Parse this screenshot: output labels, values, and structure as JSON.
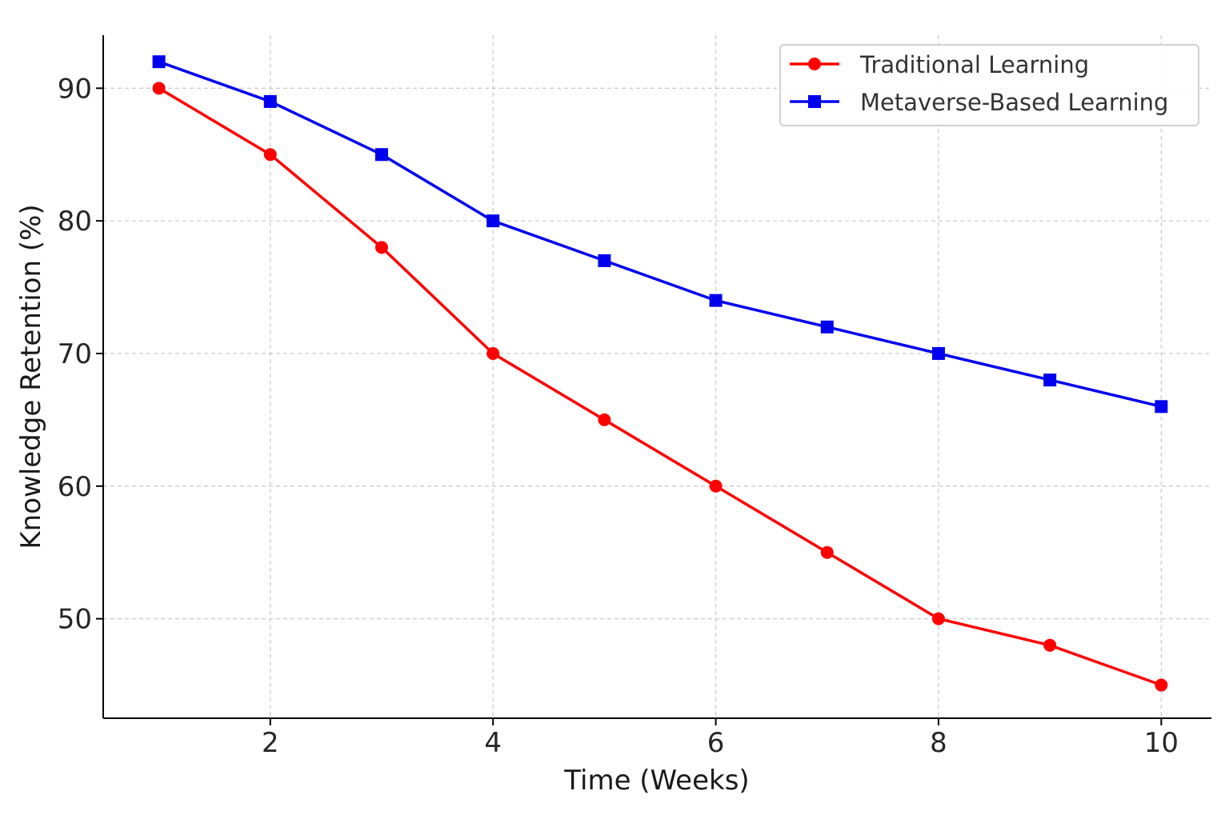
{
  "chart_data": {
    "type": "line",
    "title": "",
    "xlabel": "Time (Weeks)",
    "ylabel": "Knowledge Retention (%)",
    "x": [
      1,
      2,
      3,
      4,
      5,
      6,
      7,
      8,
      9,
      10
    ],
    "xlim": [
      0.5,
      10.45
    ],
    "ylim": [
      42.5,
      94
    ],
    "xticks": [
      2,
      4,
      6,
      8,
      10
    ],
    "yticks": [
      50,
      60,
      70,
      80,
      90
    ],
    "grid": true,
    "legend_position": "top-right",
    "series": [
      {
        "name": "Traditional Learning",
        "color": "#ff0000",
        "marker": "circle",
        "values": [
          90,
          85,
          78,
          70,
          65,
          60,
          55,
          50,
          48,
          45
        ]
      },
      {
        "name": "Metaverse-Based Learning",
        "color": "#0000ee",
        "marker": "square",
        "values": [
          92,
          89,
          85,
          80,
          77,
          74,
          72,
          70,
          68,
          66
        ]
      }
    ]
  }
}
